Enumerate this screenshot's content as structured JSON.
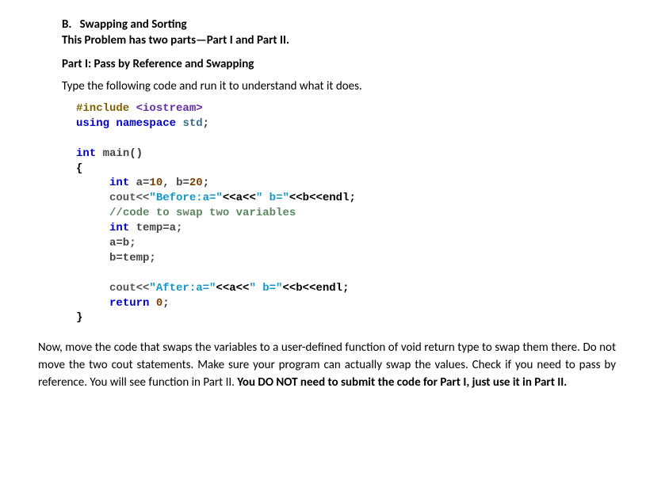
{
  "heading": {
    "label": "B.",
    "title": "Swapping and Sorting"
  },
  "subtitle": "This Problem has two parts—Part I and Part II.",
  "part1_heading": "Part I: Pass by Reference and Swapping",
  "instruction": "Type the following code and run it to understand what it does.",
  "code": {
    "l1a": "#include",
    "l1b": " <iostream>",
    "l2a": "using",
    "l2b": " ",
    "l2c": "namespace",
    "l2d": " ",
    "l2e": "std",
    "l2f": ";",
    "l3": " ",
    "l4a": "int",
    "l4b": " ",
    "l4c": "main",
    "l4d": "()",
    "l5": "{",
    "l6a": "     ",
    "l6b": "int",
    "l6c": " a=",
    "l6d": "10",
    "l6e": ", b=",
    "l6f": "20",
    "l6g": ";",
    "l7a": "     cout<<",
    "l7b": "\"Before:a=\"",
    "l7c": "<<a<<",
    "l7d": "\" b=\"",
    "l7e": "<<b<<endl;",
    "l8a": "     ",
    "l8b": "//code to swap two variables",
    "l9a": "     ",
    "l9b": "int",
    "l9c": " temp=a;",
    "l10": "     a=b;",
    "l11": "     b=temp;",
    "l12": " ",
    "l13a": "     cout<<",
    "l13b": "\"After:a=\"",
    "l13c": "<<a<<",
    "l13d": "\" b=\"",
    "l13e": "<<b<<endl;",
    "l14a": "     ",
    "l14b": "return",
    "l14c": " ",
    "l14d": "0",
    "l14e": ";",
    "l15": "}"
  },
  "final": {
    "p1": "Now, move the code that swaps the variables to a user-defined function of void return type to swap them there. Do not move the two cout statements. Make sure your program can actually swap the values. Check if you need to pass by reference. You will see function in Part II. ",
    "p2": "You DO NOT need to submit the code for Part I, just use it in Part II."
  }
}
